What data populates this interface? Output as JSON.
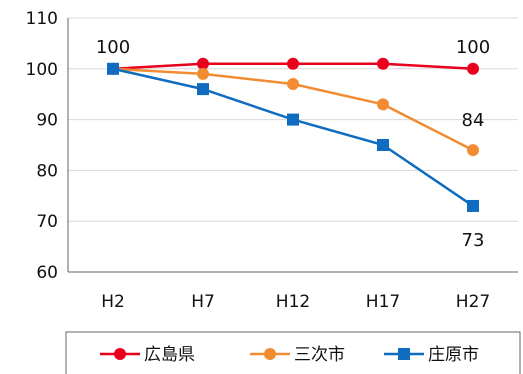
{
  "chart_data": {
    "type": "line",
    "title": "",
    "xlabel": "",
    "ylabel": "",
    "categories": [
      "H2",
      "H7",
      "H12",
      "H17",
      "H27"
    ],
    "ylim": [
      60,
      110
    ],
    "yticks": [
      60,
      70,
      80,
      90,
      100,
      110
    ],
    "grid": true,
    "legend_position": "bottom",
    "series": [
      {
        "name": "広島県",
        "values": [
          100,
          101,
          101,
          101,
          100
        ],
        "color": "#e8001c",
        "marker": "circle"
      },
      {
        "name": "三次市",
        "values": [
          100,
          99,
          97,
          93,
          84
        ],
        "color": "#f28c33",
        "marker": "circle"
      },
      {
        "name": "庄原市",
        "values": [
          100,
          96,
          90,
          85,
          73
        ],
        "color": "#0f6cbf",
        "marker": "square"
      }
    ],
    "annotations": [
      {
        "text": "100",
        "category": "H2",
        "value": 100
      },
      {
        "text": "100",
        "category": "H27",
        "value": 100
      },
      {
        "text": "84",
        "category": "H27",
        "value": 84
      },
      {
        "text": "73",
        "category": "H27",
        "value": 73
      }
    ]
  }
}
